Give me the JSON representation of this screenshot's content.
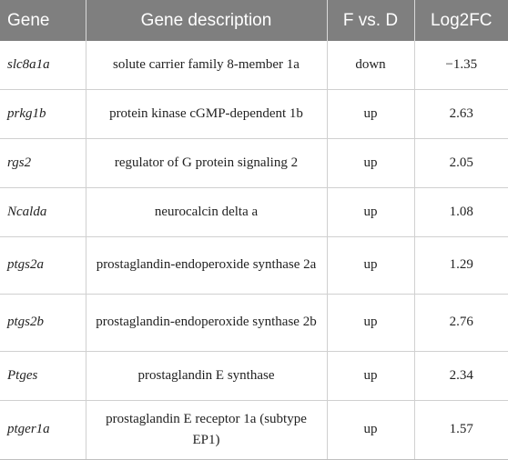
{
  "table": {
    "headers": [
      "Gene",
      "Gene description",
      "F vs. D",
      "Log2FC"
    ],
    "rows": [
      {
        "gene": "slc8a1a",
        "description": "solute carrier family 8-member 1a",
        "change": "down",
        "log2fc": "−1.35"
      },
      {
        "gene": "prkg1b",
        "description": "protein kinase cGMP-dependent 1b",
        "change": "up",
        "log2fc": "2.63"
      },
      {
        "gene": "rgs2",
        "description": "regulator of G protein signaling 2",
        "change": "up",
        "log2fc": "2.05"
      },
      {
        "gene": "Ncalda",
        "description": "neurocalcin delta a",
        "change": "up",
        "log2fc": "1.08"
      },
      {
        "gene": "ptgs2a",
        "description": "prostaglandin-endoperoxide synthase 2a",
        "change": "up",
        "log2fc": "1.29"
      },
      {
        "gene": "ptgs2b",
        "description": "prostaglandin-endoperoxide synthase 2b",
        "change": "up",
        "log2fc": "2.76"
      },
      {
        "gene": "Ptges",
        "description": "prostaglandin E synthase",
        "change": "up",
        "log2fc": "2.34"
      },
      {
        "gene": "ptger1a",
        "description": "prostaglandin E receptor 1a (subtype EP1)",
        "change": "up",
        "log2fc": "1.57"
      }
    ]
  },
  "colors": {
    "header_bg": "#7f7f7f",
    "header_text": "#ffffff",
    "grid_line": "#d0d0d0"
  }
}
